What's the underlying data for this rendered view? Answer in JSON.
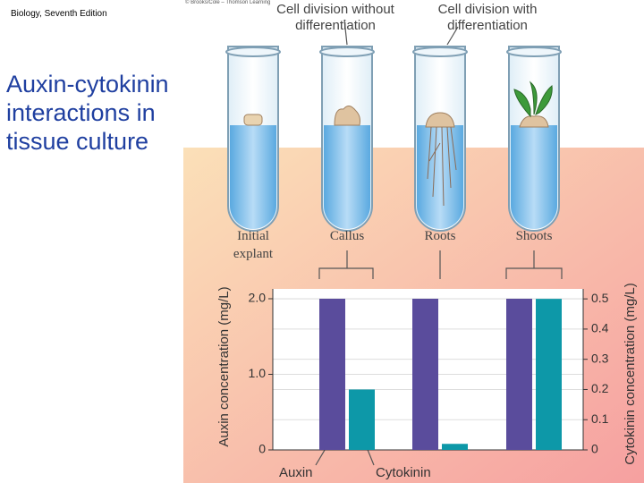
{
  "header": {
    "edition": "Biology, Seventh Edition",
    "credit": "© Brooks/Cole – Thomson Learning"
  },
  "slide_title": "Auxin-cytokinin interactions in tissue culture",
  "figure_headers": [
    "Cell division without differentiation",
    "Cell division with differentiation"
  ],
  "chart_data": {
    "type": "bar",
    "categories": [
      "Initial explant",
      "Callus",
      "Roots",
      "Shoots"
    ],
    "series": [
      {
        "name": "Auxin",
        "color": "#5a4c9c",
        "values": [
          null,
          2.0,
          2.0,
          2.0
        ]
      },
      {
        "name": "Cytokinin",
        "color": "#0d98a8",
        "axis": "y2",
        "values": [
          null,
          0.2,
          0.02,
          0.5
        ]
      }
    ],
    "y_label": "Auxin concentration (mg/L)",
    "y2_label": "Cytokinin concentration (mg/L)",
    "ylim": [
      0,
      2.13
    ],
    "yticks": [
      0,
      {
        "value": 1,
        "label": "1.0"
      },
      {
        "value": 2,
        "label": "2.0"
      }
    ],
    "y2lim": [
      0,
      0.533
    ],
    "y2ticks": [
      0,
      0.1,
      0.2,
      0.3,
      0.4,
      0.5
    ],
    "grid": true
  }
}
